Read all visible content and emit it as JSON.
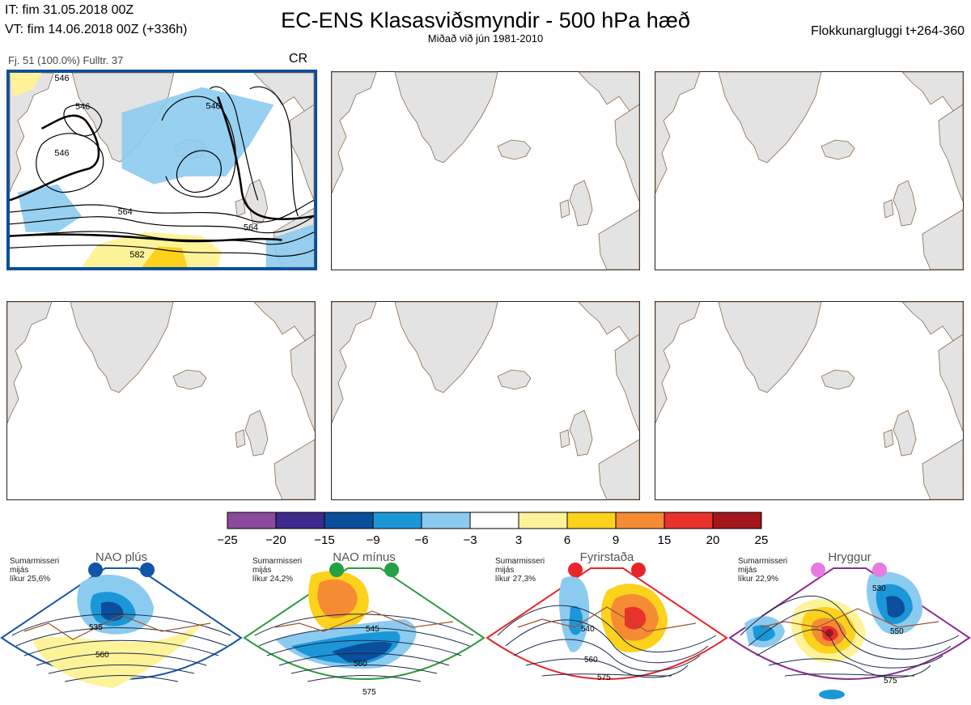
{
  "header": {
    "it_line": "IT: fim 31.05.2018 00Z",
    "vt_line": "VT: fim 14.06.2018 00Z  (+336h)",
    "title": "EC-ENS Klasasviðsmyndir - 500 hPa hæð",
    "subtitle": "Miðað við jún 1981-2010",
    "window": "Flokkunargluggi t+264-360"
  },
  "cluster": {
    "info": "Fj. 51 (100.0%)   Fulltr. 37",
    "code": "CR",
    "contour_labels": [
      "546",
      "546",
      "546",
      "546",
      "564",
      "564",
      "582"
    ]
  },
  "colorbar": {
    "ticks": [
      "−25",
      "−20",
      "−15",
      "−9",
      "−6",
      "−3",
      "3",
      "6",
      "9",
      "15",
      "20",
      "25"
    ],
    "colors": [
      "#8b4a9c",
      "#3d2a8e",
      "#0a4f9b",
      "#1b97d8",
      "#8ccbf0",
      "#ffffff",
      "#fff39a",
      "#fcd21c",
      "#f58c33",
      "#e8322b",
      "#a3161b"
    ]
  },
  "regimes": [
    {
      "name": "NAO plús",
      "season": "Sumarmisseri",
      "line2": "mijás",
      "probability": "líkur 25,6%",
      "border_color": "#1a56a0",
      "dot_color": "#0f55a8",
      "labels": [
        "535",
        "560"
      ]
    },
    {
      "name": "NAO mínus",
      "season": "Sumarmisseri",
      "line2": "mijás",
      "probability": "líkur 24,2%",
      "border_color": "#2f9c3e",
      "dot_color": "#24a045",
      "labels": [
        "545",
        "560",
        "575"
      ]
    },
    {
      "name": "Fyrirstaða",
      "season": "Sumarmisseri",
      "line2": "mijás",
      "probability": "líkur 27,3%",
      "border_color": "#e5272b",
      "dot_color": "#e5272b",
      "labels": [
        "540",
        "560",
        "575"
      ]
    },
    {
      "name": "Hryggur",
      "season": "Sumarmisseri",
      "line2": "mijás",
      "probability": "líkur 22,9%",
      "border_color": "#8a2f8c",
      "dot_color": "#e77be0",
      "labels": [
        "530",
        "550",
        "575"
      ]
    }
  ]
}
